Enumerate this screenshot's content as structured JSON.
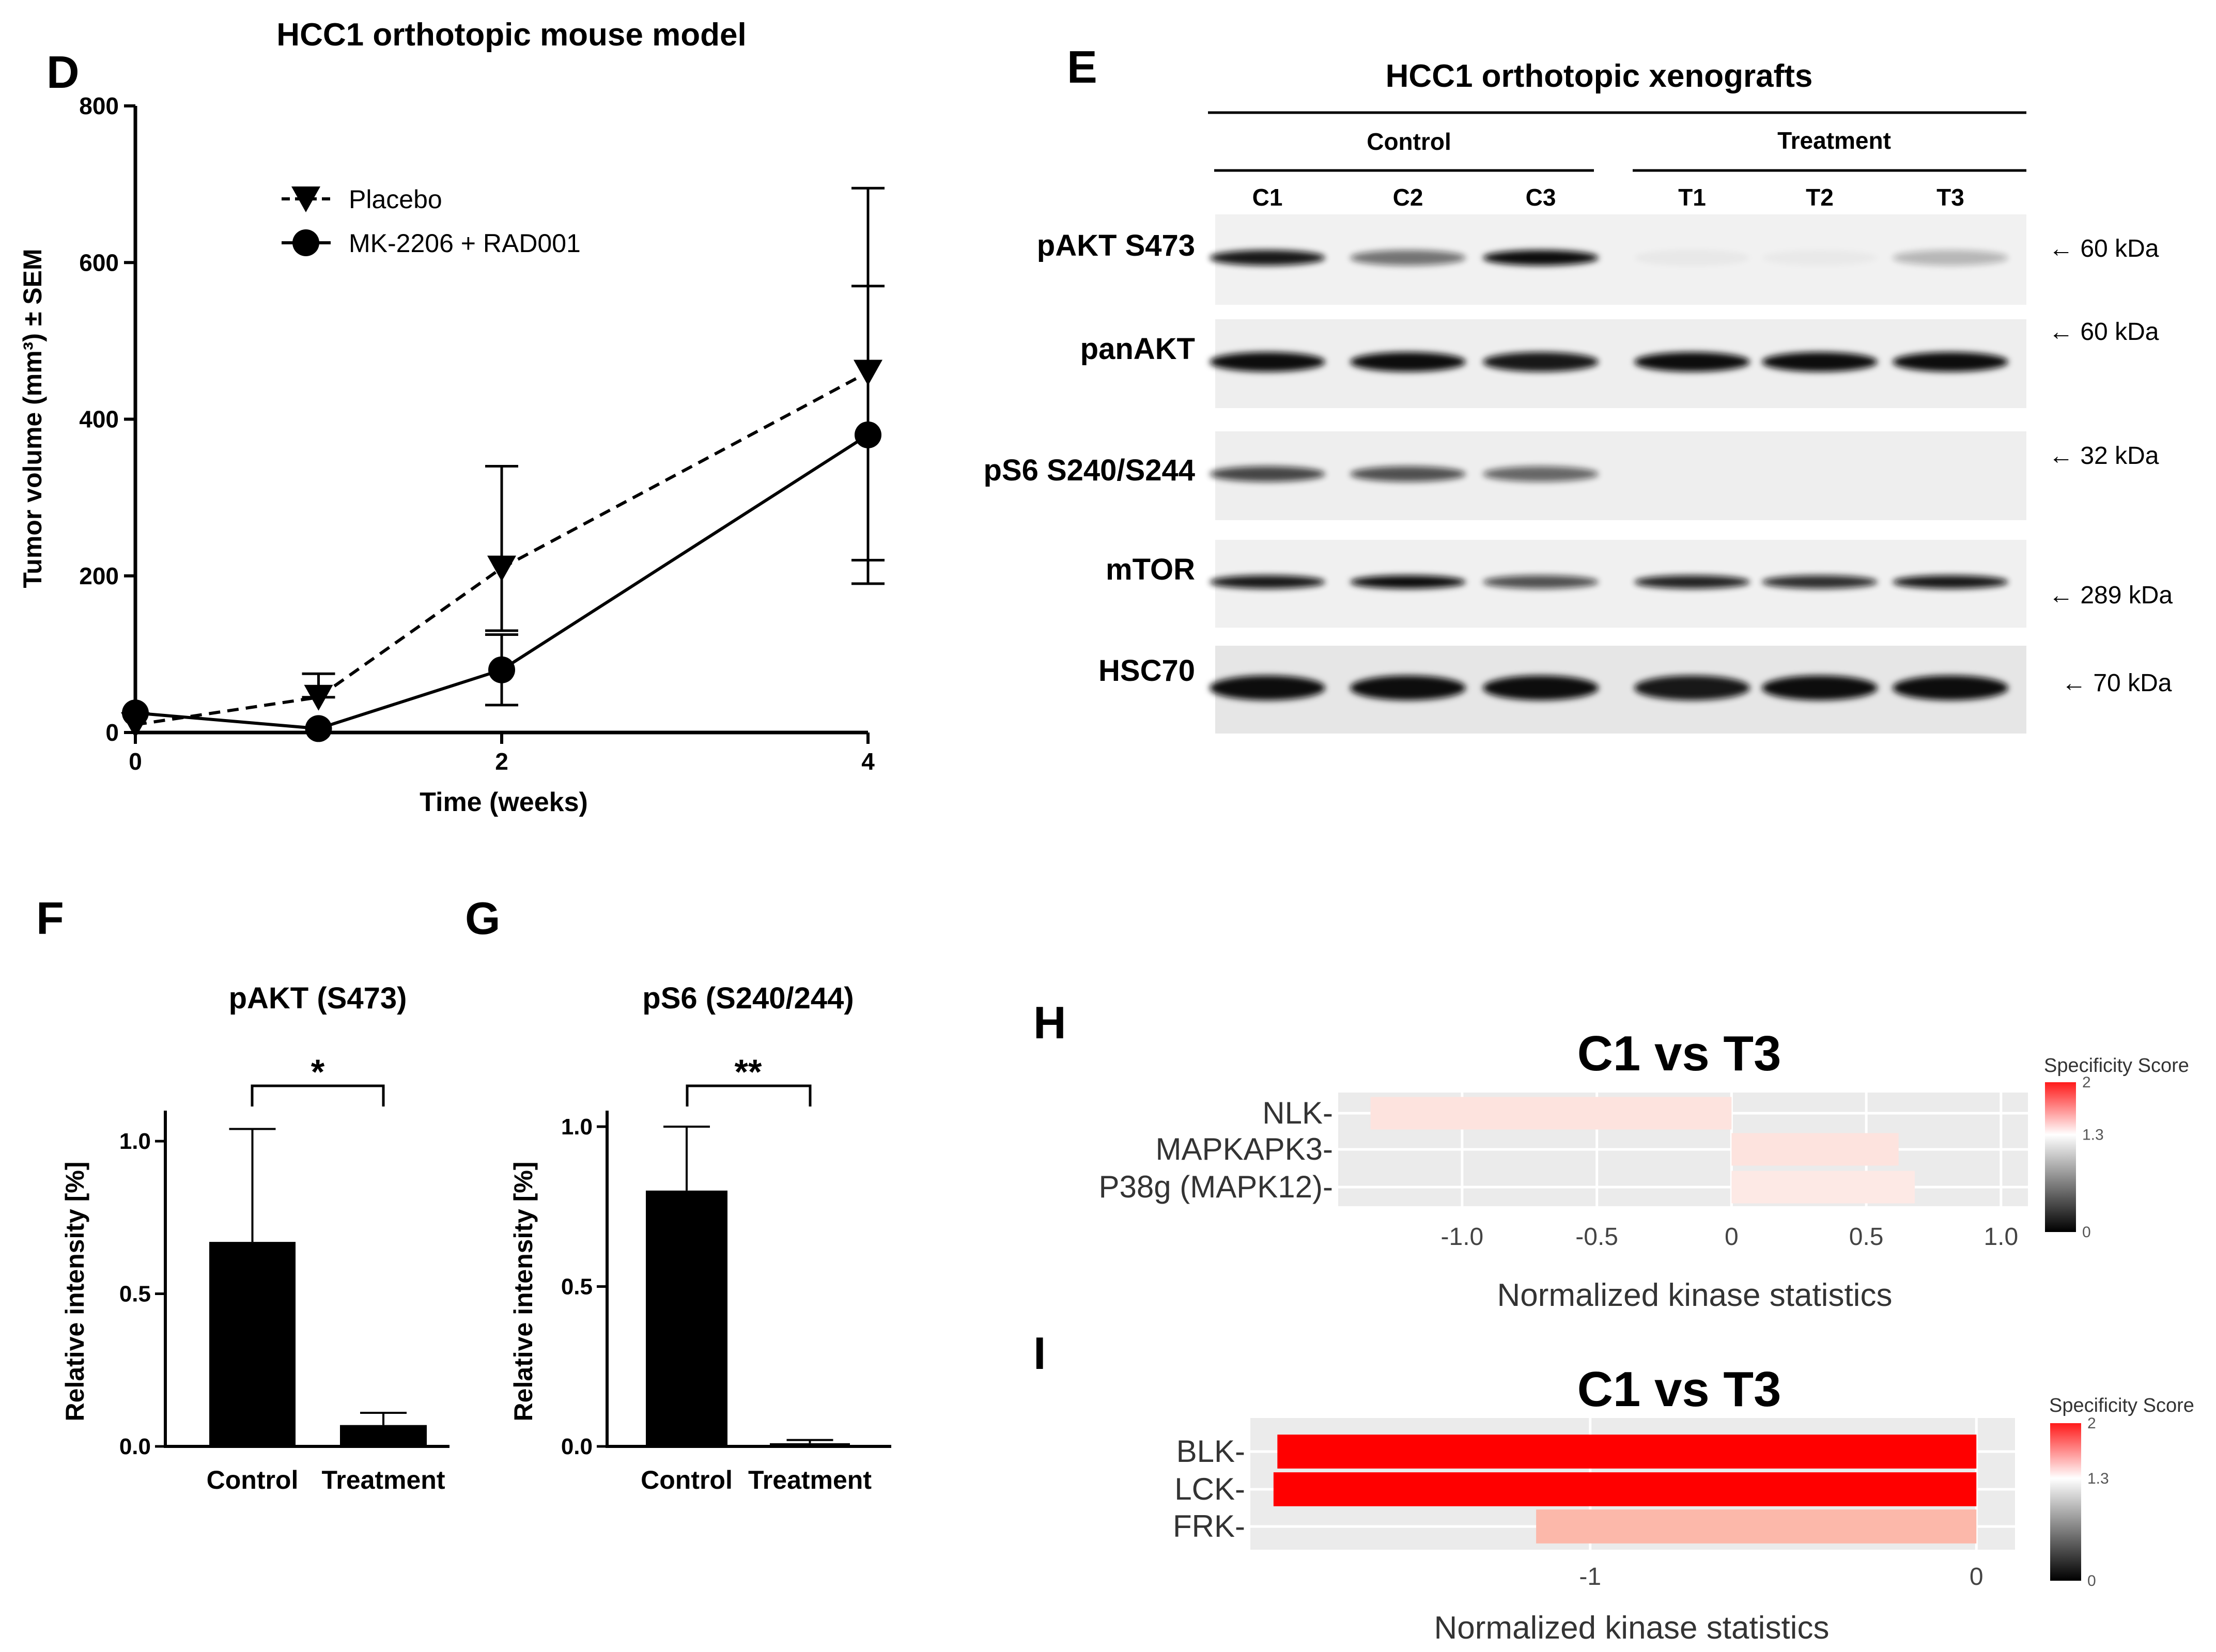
{
  "panels": {
    "D": {
      "letter": "D",
      "title": "HCC1 orthotopic mouse model",
      "ylabel": "Tumor volume (mm³) ± SEM",
      "xlabel": "Time (weeks)"
    },
    "E": {
      "letter": "E",
      "title": "HCC1 orthotopic xenografts",
      "group_labels": [
        "Control",
        "Treatment"
      ],
      "lanes": [
        "C1",
        "C2",
        "C3",
        "T1",
        "T2",
        "T3"
      ],
      "rows": [
        {
          "label": "pAKT S473",
          "kda": "← 60 kDa"
        },
        {
          "label": "panAKT",
          "kda": "← 60 kDa"
        },
        {
          "label": "pS6 S240/S244",
          "kda": "← 32 kDa"
        },
        {
          "label": "mTOR",
          "kda": "← 289 kDa"
        },
        {
          "label": "HSC70",
          "kda": "← 70 kDa"
        }
      ]
    },
    "F": {
      "letter": "F",
      "title": "pAKT (S473)",
      "ylabel": "Relative intensity [%]",
      "sig": "*"
    },
    "G": {
      "letter": "G",
      "title": "pS6 (S240/244)",
      "ylabel": "Relative intensity [%]",
      "sig": "**"
    },
    "H": {
      "letter": "H",
      "title": "C1 vs T3",
      "xlabel": "Normalized kinase statistics",
      "legend_title": "Specificity Score"
    },
    "I": {
      "letter": "I",
      "title": "C1 vs T3",
      "xlabel": "Normalized kinase statistics",
      "legend_title": "Specificity Score"
    }
  },
  "chart_data": [
    {
      "panel": "D",
      "type": "line",
      "x": [
        0,
        1,
        2,
        4
      ],
      "xticks": [
        "0",
        "2",
        "4"
      ],
      "xtick_values": [
        0,
        2,
        4
      ],
      "yticks": [
        0,
        200,
        400,
        600,
        800
      ],
      "xlim": [
        0,
        4
      ],
      "ylim": [
        0,
        800
      ],
      "legend_placement": "top-left",
      "series": [
        {
          "name": "Placebo",
          "marker": "triangle-down",
          "dash": "dashed",
          "values": [
            10,
            45,
            210,
            460
          ],
          "err_upper": [
            10,
            75,
            340,
            695
          ],
          "err_lower": [
            10,
            45,
            130,
            220
          ]
        },
        {
          "name": "MK-2206 + RAD001",
          "marker": "circle",
          "dash": "solid",
          "values": [
            25,
            5,
            80,
            380
          ],
          "err_upper": [
            25,
            5,
            125,
            570
          ],
          "err_lower": [
            25,
            5,
            35,
            190
          ]
        }
      ]
    },
    {
      "panel": "F",
      "type": "bar",
      "categories": [
        "Control",
        "Treatment"
      ],
      "values": [
        0.67,
        0.07
      ],
      "err_upper": [
        1.04,
        0.11
      ],
      "yticks": [
        "0.0",
        "0.5",
        "1.0"
      ],
      "ytick_values": [
        0,
        0.5,
        1.0
      ],
      "ylim": [
        0,
        1.1
      ]
    },
    {
      "panel": "G",
      "type": "bar",
      "categories": [
        "Control",
        "Treatment"
      ],
      "values": [
        0.8,
        0.01
      ],
      "err_upper": [
        1.0,
        0.02
      ],
      "yticks": [
        "0.0",
        "0.5",
        "1.0"
      ],
      "ytick_values": [
        0,
        0.5,
        1.0
      ],
      "ylim": [
        0,
        1.05
      ]
    },
    {
      "panel": "H",
      "type": "bar",
      "orientation": "horizontal",
      "categories": [
        "NLK-",
        "MAPKAPK3-",
        "P38g (MAPK12)-"
      ],
      "values": [
        -1.34,
        0.62,
        0.68
      ],
      "colors": [
        "#fde3de",
        "#fde3de",
        "#fde9e5"
      ],
      "xticks": [
        "-1.0",
        "-0.5",
        "0",
        "0.5",
        "1.0"
      ],
      "xtick_values": [
        -1.0,
        -0.5,
        0,
        0.5,
        1.0
      ],
      "xlim": [
        -1.46,
        1.1
      ],
      "legend_ticks": [
        "2",
        "1.3",
        "0"
      ],
      "legend_tick_values": [
        2,
        1.3,
        0
      ],
      "legend_placement": "right"
    },
    {
      "panel": "I",
      "type": "bar",
      "orientation": "horizontal",
      "categories": [
        "BLK-",
        "LCK-",
        "FRK-"
      ],
      "values": [
        -1.81,
        -1.82,
        -1.14
      ],
      "colors": [
        "#ff0000",
        "#ff0000",
        "#fcb8aa"
      ],
      "xticks": [
        "-1",
        "0"
      ],
      "xtick_values": [
        -1,
        0
      ],
      "xlim": [
        -1.88,
        0.1
      ],
      "legend_ticks": [
        "2",
        "1.3",
        "0"
      ],
      "legend_tick_values": [
        2,
        1.3,
        0
      ],
      "legend_placement": "right"
    }
  ]
}
